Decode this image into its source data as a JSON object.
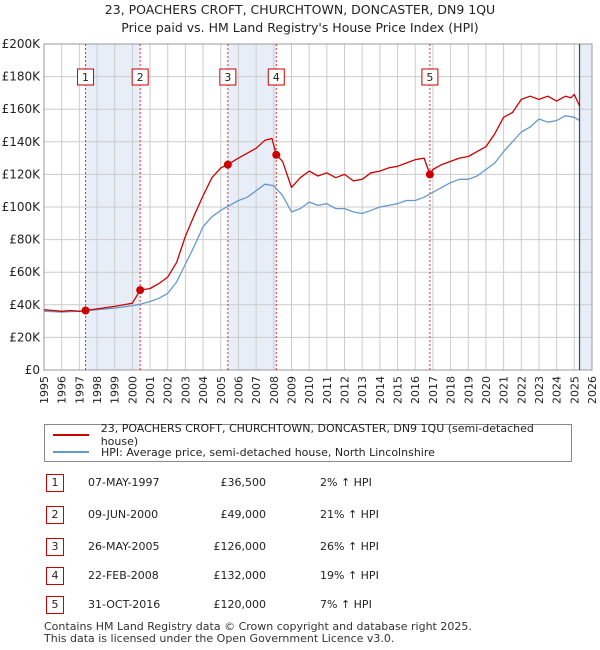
{
  "title_line1": "23, POACHERS CROFT, CHURCHTOWN, DONCASTER, DN9 1QU",
  "title_line2": "Price paid vs. HM Land Registry's House Price Index (HPI)",
  "colors": {
    "property": "#cc0000",
    "hpi": "#6699cc",
    "shade": "#e8eef8",
    "grid": "#cccccc"
  },
  "chart_data": {
    "type": "line",
    "xlim": [
      1995,
      2026
    ],
    "ylim": [
      0,
      200000
    ],
    "y_ticks": [
      0,
      20000,
      40000,
      60000,
      80000,
      100000,
      120000,
      140000,
      160000,
      180000,
      200000
    ],
    "y_tick_labels": [
      "£0",
      "£20K",
      "£40K",
      "£60K",
      "£80K",
      "£100K",
      "£120K",
      "£140K",
      "£160K",
      "£180K",
      "£200K"
    ],
    "x_ticks": [
      1995,
      1996,
      1997,
      1998,
      1999,
      2000,
      2001,
      2002,
      2003,
      2004,
      2005,
      2006,
      2007,
      2008,
      2009,
      2010,
      2011,
      2012,
      2013,
      2014,
      2015,
      2016,
      2017,
      2018,
      2019,
      2020,
      2021,
      2022,
      2023,
      2024,
      2025,
      2026
    ],
    "x_tick_labels": [
      "1995",
      "1996",
      "1997",
      "1998",
      "1999",
      "2000",
      "2001",
      "2002",
      "2003",
      "2004",
      "2005",
      "2006",
      "2007",
      "2008",
      "2009",
      "2010",
      "2011",
      "2012",
      "2013",
      "2014",
      "2015",
      "2016",
      "2017",
      "2018",
      "2019",
      "2020",
      "2021",
      "2022",
      "2023",
      "2024",
      "2025",
      "2026"
    ],
    "shaded_ranges": [
      [
        1997.35,
        2000.44
      ],
      [
        2005.4,
        2008.14
      ],
      [
        2025.2,
        2026
      ]
    ],
    "series": [
      {
        "name": "23, POACHERS CROFT, CHURCHTOWN, DONCASTER, DN9 1QU (semi-detached house)",
        "color": "#cc0000",
        "x": [
          1995,
          1995.5,
          1996,
          1996.5,
          1997,
          1997.35,
          1998,
          1999,
          2000,
          2000.44,
          2001,
          2001.5,
          2002,
          2002.5,
          2003,
          2003.5,
          2004,
          2004.5,
          2005,
          2005.4,
          2006,
          2006.5,
          2007,
          2007.5,
          2007.9,
          2008.14,
          2008.5,
          2009,
          2009.5,
          2010,
          2010.5,
          2011,
          2011.5,
          2012,
          2012.5,
          2013,
          2013.5,
          2014,
          2014.5,
          2015,
          2015.5,
          2016,
          2016.5,
          2016.83,
          2017,
          2017.5,
          2018,
          2018.5,
          2019,
          2019.5,
          2020,
          2020.5,
          2021,
          2021.5,
          2022,
          2022.5,
          2023,
          2023.5,
          2024,
          2024.5,
          2024.8,
          2025,
          2025.3
        ],
        "values": [
          37000,
          36500,
          36000,
          36500,
          36000,
          36500,
          37500,
          39000,
          41000,
          49000,
          50000,
          53000,
          57000,
          66000,
          82000,
          95000,
          107000,
          118000,
          124000,
          126000,
          130000,
          133000,
          136000,
          141000,
          142000,
          132000,
          128000,
          112000,
          118000,
          122000,
          119000,
          121000,
          118000,
          120000,
          116000,
          117000,
          121000,
          122000,
          124000,
          125000,
          127000,
          129000,
          130000,
          120000,
          123000,
          126000,
          128000,
          130000,
          131000,
          134000,
          137000,
          145000,
          155000,
          158000,
          166000,
          168000,
          166000,
          168000,
          165000,
          168000,
          167000,
          169000,
          162000
        ]
      },
      {
        "name": "HPI: Average price, semi-detached house, North Lincolnshire",
        "color": "#6699cc",
        "x": [
          1995,
          1995.5,
          1996,
          1996.5,
          1997,
          1997.5,
          1998,
          1999,
          2000,
          2000.5,
          2001,
          2001.5,
          2002,
          2002.5,
          2003,
          2003.5,
          2004,
          2004.5,
          2005,
          2005.5,
          2006,
          2006.5,
          2007,
          2007.5,
          2008,
          2008.5,
          2009,
          2009.5,
          2010,
          2010.5,
          2011,
          2011.5,
          2012,
          2012.5,
          2013,
          2013.5,
          2014,
          2014.5,
          2015,
          2015.5,
          2016,
          2016.5,
          2017,
          2017.5,
          2018,
          2018.5,
          2019,
          2019.5,
          2020,
          2020.5,
          2021,
          2021.5,
          2022,
          2022.5,
          2023,
          2023.5,
          2024,
          2024.5,
          2025,
          2025.3
        ],
        "values": [
          36000,
          35800,
          35500,
          35800,
          36000,
          36500,
          37000,
          38000,
          39500,
          40500,
          42000,
          44000,
          47000,
          54000,
          65000,
          76000,
          88000,
          94000,
          98000,
          101000,
          104000,
          106000,
          110000,
          114000,
          113000,
          107000,
          97000,
          99000,
          103000,
          101000,
          102000,
          99000,
          99000,
          97000,
          96000,
          98000,
          100000,
          101000,
          102000,
          104000,
          104000,
          106000,
          109000,
          112000,
          115000,
          117000,
          117000,
          119000,
          123000,
          127000,
          134000,
          140000,
          146000,
          149000,
          154000,
          152000,
          153000,
          156000,
          155000,
          153000
        ]
      }
    ],
    "sales": [
      {
        "id": "1",
        "x": 1997.35,
        "y": 36500
      },
      {
        "id": "2",
        "x": 2000.44,
        "y": 49000
      },
      {
        "id": "3",
        "x": 2005.4,
        "y": 126000
      },
      {
        "id": "4",
        "x": 2008.14,
        "y": 132000
      },
      {
        "id": "5",
        "x": 2016.83,
        "y": 120000
      }
    ]
  },
  "legend": {
    "property_label": "23, POACHERS CROFT, CHURCHTOWN, DONCASTER, DN9 1QU (semi-detached house)",
    "hpi_label": "HPI: Average price, semi-detached house, North Lincolnshire"
  },
  "transactions": [
    {
      "id": "1",
      "date": "07-MAY-1997",
      "price": "£36,500",
      "hpi": "2% ↑ HPI"
    },
    {
      "id": "2",
      "date": "09-JUN-2000",
      "price": "£49,000",
      "hpi": "21% ↑ HPI"
    },
    {
      "id": "3",
      "date": "26-MAY-2005",
      "price": "£126,000",
      "hpi": "26% ↑ HPI"
    },
    {
      "id": "4",
      "date": "22-FEB-2008",
      "price": "£132,000",
      "hpi": "19% ↑ HPI"
    },
    {
      "id": "5",
      "date": "31-OCT-2016",
      "price": "£120,000",
      "hpi": "7% ↑ HPI"
    }
  ],
  "footer": {
    "line1": "Contains HM Land Registry data © Crown copyright and database right 2025.",
    "line2": "This data is licensed under the Open Government Licence v3.0."
  }
}
